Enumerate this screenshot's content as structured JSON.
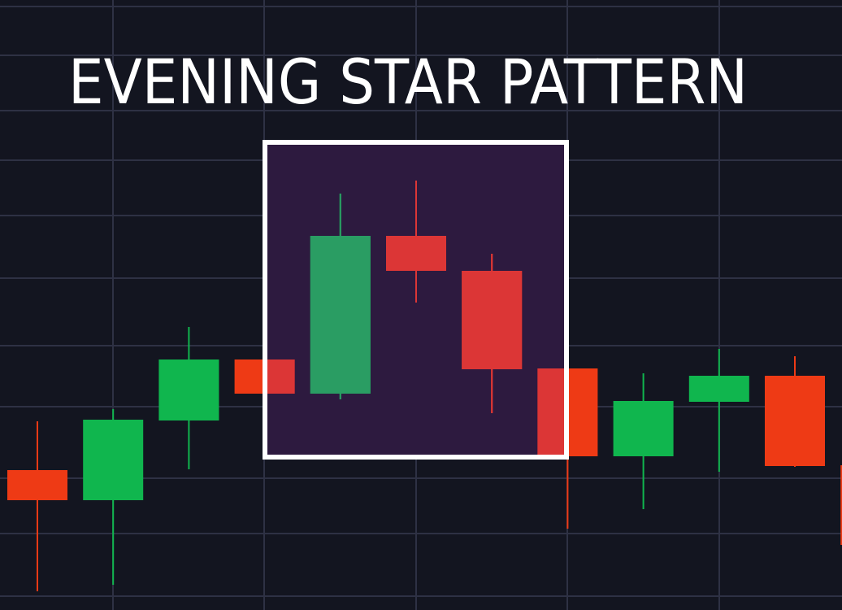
{
  "chart_data": {
    "type": "candlestick",
    "title": "EVENING STAR PATTERN",
    "xlabel": "",
    "ylabel": "",
    "ylim": [
      0,
      75
    ],
    "grid": true,
    "highlight": {
      "from_index": 4,
      "to_index": 6,
      "label": ""
    },
    "candles": [
      {
        "open": 17.2,
        "close": 13.5,
        "high": 23.2,
        "low": 2.3
      },
      {
        "open": 13.5,
        "close": 23.4,
        "high": 24.7,
        "low": 3.1
      },
      {
        "open": 23.3,
        "close": 30.8,
        "high": 34.8,
        "low": 17.3
      },
      {
        "open": 30.8,
        "close": 26.6,
        "high": 30.8,
        "low": 26.6
      },
      {
        "open": 26.6,
        "close": 46.0,
        "high": 51.2,
        "low": 25.9
      },
      {
        "open": 46.0,
        "close": 41.7,
        "high": 52.8,
        "low": 37.8
      },
      {
        "open": 41.7,
        "close": 29.6,
        "high": 43.8,
        "low": 24.2
      },
      {
        "open": 29.7,
        "close": 18.9,
        "high": 29.7,
        "low": 10.0
      },
      {
        "open": 18.9,
        "close": 25.7,
        "high": 29.1,
        "low": 12.4
      },
      {
        "open": 25.6,
        "close": 28.8,
        "high": 32.1,
        "low": 17.0
      },
      {
        "open": 28.8,
        "close": 17.7,
        "high": 31.2,
        "low": 17.6
      },
      {
        "open": 17.8,
        "close": 8.0,
        "high": 17.8,
        "low": 8.0
      }
    ]
  },
  "colors": {
    "background": "#131520",
    "grid": "#2e3144",
    "up": "#10b64e",
    "down": "#ee3a15",
    "up_highlight": "#2a9d63",
    "down_highlight": "#dc3636",
    "highlight_fill": "#2d1a3f",
    "highlight_border": "#ffffff",
    "title": "#ffffff"
  }
}
